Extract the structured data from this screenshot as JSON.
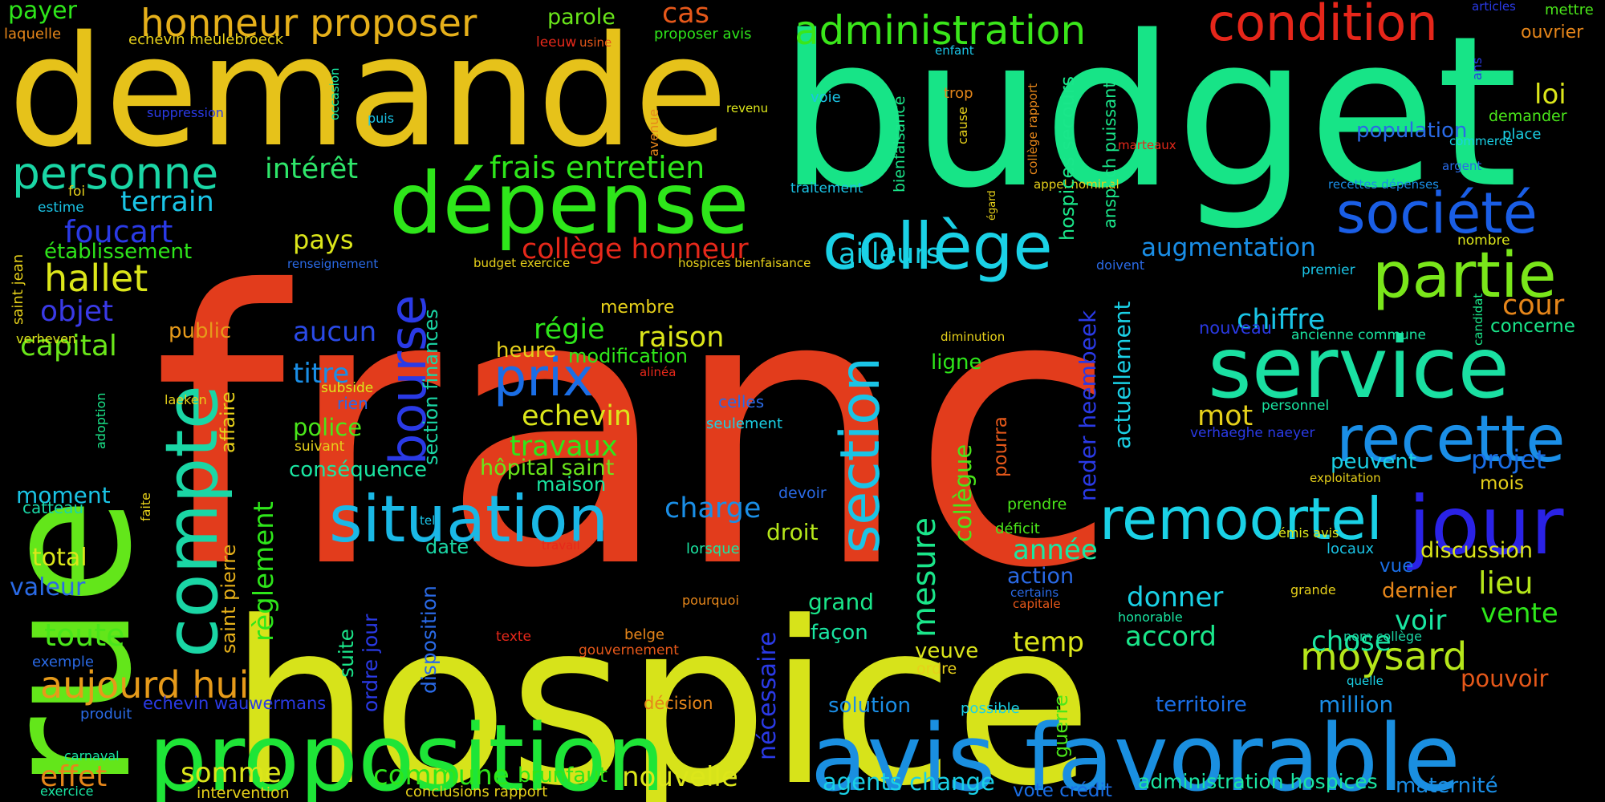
{
  "words": [
    {
      "text": "franc",
      "color": "#e23c1c"
    },
    {
      "text": "hospice",
      "color": "#d7e31a"
    },
    {
      "text": "budget",
      "color": "#17e487"
    },
    {
      "text": "demande",
      "color": "#e6c21a"
    },
    {
      "text": "rue",
      "color": "#63e61a"
    },
    {
      "text": "proposition",
      "color": "#1ee537"
    },
    {
      "text": "avis favorable",
      "color": "#1a8fe0"
    },
    {
      "text": "dépense",
      "color": "#2ee61a"
    },
    {
      "text": "service",
      "color": "#1ae0a2"
    },
    {
      "text": "situation",
      "color": "#1ab8e6"
    },
    {
      "text": "compte",
      "color": "#1ad6a5"
    },
    {
      "text": "collège",
      "color": "#1ad1e6"
    },
    {
      "text": "jour",
      "color": "#2a22e6"
    },
    {
      "text": "recette",
      "color": "#1a8ee6"
    },
    {
      "text": "remoortel",
      "color": "#1ad1e6"
    },
    {
      "text": "section",
      "color": "#1ac4e6"
    },
    {
      "text": "bourse",
      "color": "#2a3ae6"
    },
    {
      "text": "partie",
      "color": "#7ae61a"
    },
    {
      "text": "société",
      "color": "#1a5ee6"
    },
    {
      "text": "condition",
      "color": "#e6261a"
    },
    {
      "text": "administration",
      "color": "#3ae61a"
    },
    {
      "text": "honneur proposer",
      "color": "#e6b01a"
    },
    {
      "text": "personne",
      "color": "#1ad6a5"
    },
    {
      "text": "prix",
      "color": "#1a6ee6"
    },
    {
      "text": "aujourd hui",
      "color": "#e69a1a"
    },
    {
      "text": "moysard",
      "color": "#b5e61a"
    },
    {
      "text": "mesure",
      "color": "#1ae68a"
    },
    {
      "text": "frais entretien",
      "color": "#2ee61a"
    },
    {
      "text": "collège honneur",
      "color": "#e6281a"
    },
    {
      "text": "intérêt",
      "color": "#2ee66a"
    },
    {
      "text": "terrain",
      "color": "#1ac4e6"
    },
    {
      "text": "hallet",
      "color": "#dce61a"
    },
    {
      "text": "foucart",
      "color": "#2a3ae6"
    },
    {
      "text": "établissement",
      "color": "#2ee61a"
    },
    {
      "text": "objet",
      "color": "#3a3ae6"
    },
    {
      "text": "capital",
      "color": "#6ae61a"
    },
    {
      "text": "public",
      "color": "#e69a1a"
    },
    {
      "text": "aucun",
      "color": "#2a4ae6"
    },
    {
      "text": "titre",
      "color": "#1a8ee6"
    },
    {
      "text": "police",
      "color": "#4ae61a"
    },
    {
      "text": "conséquence",
      "color": "#1ae6a2"
    },
    {
      "text": "régie",
      "color": "#2ee61a"
    },
    {
      "text": "raison",
      "color": "#dce61a"
    },
    {
      "text": "heure",
      "color": "#e6d01a"
    },
    {
      "text": "modification",
      "color": "#2ee61a"
    },
    {
      "text": "echevin",
      "color": "#dce61a"
    },
    {
      "text": "travaux",
      "color": "#2ee61a"
    },
    {
      "text": "hôpital saint",
      "color": "#6ae61a"
    },
    {
      "text": "maison",
      "color": "#1ae6a2"
    },
    {
      "text": "charge",
      "color": "#1a8ee6"
    },
    {
      "text": "droit",
      "color": "#b5e61a"
    },
    {
      "text": "date",
      "color": "#1ad6a5"
    },
    {
      "text": "règlement",
      "color": "#2ee61a"
    },
    {
      "text": "saint pierre",
      "color": "#e6b01a"
    },
    {
      "text": "affaire",
      "color": "#e6d01a"
    },
    {
      "text": "section finances",
      "color": "#1ad6a5"
    },
    {
      "text": "disposition",
      "color": "#2a6ae6"
    },
    {
      "text": "suite",
      "color": "#1ae68a"
    },
    {
      "text": "ordre jour",
      "color": "#2a3ae6"
    },
    {
      "text": "commune",
      "color": "#2ee61a"
    },
    {
      "text": "nouvelle",
      "color": "#dce61a"
    },
    {
      "text": "brunfaut",
      "color": "#2ee61a"
    },
    {
      "text": "conclusions rapport",
      "color": "#e6d01a"
    },
    {
      "text": "somme",
      "color": "#dce61a"
    },
    {
      "text": "effet",
      "color": "#e6861a"
    },
    {
      "text": "intervention",
      "color": "#e6d01a"
    },
    {
      "text": "echevin wauwermans",
      "color": "#2a3ae6"
    },
    {
      "text": "toute",
      "color": "#4ae61a"
    },
    {
      "text": "total",
      "color": "#dce61a"
    },
    {
      "text": "valeur",
      "color": "#2a6ae6"
    },
    {
      "text": "moment",
      "color": "#1ac4e6"
    },
    {
      "text": "catteau",
      "color": "#1ad6a5"
    },
    {
      "text": "faite",
      "color": "#e6d01a"
    },
    {
      "text": "exemple",
      "color": "#2a6ae6"
    },
    {
      "text": "produit",
      "color": "#2a6ae6"
    },
    {
      "text": "carnaval",
      "color": "#1ae6a2"
    },
    {
      "text": "exercice",
      "color": "#1ae6a2"
    },
    {
      "text": "adoption",
      "color": "#1ae68a"
    },
    {
      "text": "verheven",
      "color": "#dce61a"
    },
    {
      "text": "laeken",
      "color": "#e6d01a"
    },
    {
      "text": "subside",
      "color": "#dce61a"
    },
    {
      "text": "rien",
      "color": "#2a6ae6"
    },
    {
      "text": "suivant",
      "color": "#e6d01a"
    },
    {
      "text": "payer",
      "color": "#2ee61a"
    },
    {
      "text": "laquelle",
      "color": "#e6861a"
    },
    {
      "text": "echevin meulebroeck",
      "color": "#e6d01a"
    },
    {
      "text": "parole",
      "color": "#6ae61a"
    },
    {
      "text": "cas",
      "color": "#e6581a"
    },
    {
      "text": "proposer avis",
      "color": "#2ee61a"
    },
    {
      "text": "leeuw",
      "color": "#e6281a"
    },
    {
      "text": "usine",
      "color": "#e6581a"
    },
    {
      "text": "occasion",
      "color": "#1ae6a2"
    },
    {
      "text": "suppression",
      "color": "#2a3ae6"
    },
    {
      "text": "puis",
      "color": "#1ac4e6"
    },
    {
      "text": "foi",
      "color": "#e6d01a"
    },
    {
      "text": "estime",
      "color": "#1ac4e6"
    },
    {
      "text": "saint jean",
      "color": "#e6d01a"
    },
    {
      "text": "pays",
      "color": "#dce61a"
    },
    {
      "text": "ailleurs",
      "color": "#1ad1e6"
    },
    {
      "text": "membre",
      "color": "#e6d01a"
    },
    {
      "text": "renseignement",
      "color": "#2a6ae6"
    },
    {
      "text": "budget exercice",
      "color": "#e6d01a"
    },
    {
      "text": "hospices bienfaisance",
      "color": "#e6d01a"
    },
    {
      "text": "avenue",
      "color": "#e6861a"
    },
    {
      "text": "revenu",
      "color": "#dce61a"
    },
    {
      "text": "voie",
      "color": "#1ac4e6"
    },
    {
      "text": "enfant",
      "color": "#1ac4e6"
    },
    {
      "text": "traitement",
      "color": "#1ac4e6"
    },
    {
      "text": "bienfaisance",
      "color": "#1ae68a"
    },
    {
      "text": "trop",
      "color": "#e6861a"
    },
    {
      "text": "cause",
      "color": "#e6d01a"
    },
    {
      "text": "collège rapport",
      "color": "#e6861a"
    },
    {
      "text": "égard",
      "color": "#e6d01a"
    },
    {
      "text": "appel nominal",
      "color": "#e6d01a"
    },
    {
      "text": "hospices secours",
      "color": "#1ae68a"
    },
    {
      "text": "anspach puissant",
      "color": "#1ae68a"
    },
    {
      "text": "marteaux",
      "color": "#e6281a"
    },
    {
      "text": "diminution",
      "color": "#e6d01a"
    },
    {
      "text": "ligne",
      "color": "#2ee61a"
    },
    {
      "text": "neder heembeek",
      "color": "#2a3ae6"
    },
    {
      "text": "actuellement",
      "color": "#1ad1e6"
    },
    {
      "text": "collègue",
      "color": "#4ae61a"
    },
    {
      "text": "pourra",
      "color": "#e6581a"
    },
    {
      "text": "celles",
      "color": "#2a6ae6"
    },
    {
      "text": "seulement",
      "color": "#1ad1e6"
    },
    {
      "text": "alinéa",
      "color": "#e6281a"
    },
    {
      "text": "devoir",
      "color": "#2a6ae6"
    },
    {
      "text": "tel",
      "color": "#1ac4e6"
    },
    {
      "text": "travail",
      "color": "#e6281a"
    },
    {
      "text": "lorsque",
      "color": "#1ae6a2"
    },
    {
      "text": "prendre",
      "color": "#4ae61a"
    },
    {
      "text": "déficit",
      "color": "#4ae61a"
    },
    {
      "text": "année",
      "color": "#1ae6a2"
    },
    {
      "text": "action",
      "color": "#2a6ae6"
    },
    {
      "text": "donner",
      "color": "#1ad1e6"
    },
    {
      "text": "temp",
      "color": "#dce61a"
    },
    {
      "text": "accord",
      "color": "#1ae68a"
    },
    {
      "text": "nécessaire",
      "color": "#2a3ae6"
    },
    {
      "text": "grand",
      "color": "#1ae68a"
    },
    {
      "text": "façon",
      "color": "#1ae6a2"
    },
    {
      "text": "veuve",
      "color": "#dce61a"
    },
    {
      "text": "ordre",
      "color": "#e6d01a"
    },
    {
      "text": "pourquoi",
      "color": "#e6861a"
    },
    {
      "text": "belge",
      "color": "#e6861a"
    },
    {
      "text": "texte",
      "color": "#e6281a"
    },
    {
      "text": "gouvernement",
      "color": "#e6581a"
    },
    {
      "text": "décision",
      "color": "#e6861a"
    },
    {
      "text": "solution",
      "color": "#1a8ee6"
    },
    {
      "text": "possible",
      "color": "#1ad1e6"
    },
    {
      "text": "guerre",
      "color": "#4ae61a"
    },
    {
      "text": "agents change",
      "color": "#1ad1e6"
    },
    {
      "text": "vote crédit",
      "color": "#1a6ee6"
    },
    {
      "text": "administration hospices",
      "color": "#1ae6a2"
    },
    {
      "text": "maternité",
      "color": "#1a8ee6"
    },
    {
      "text": "territoire",
      "color": "#1a6ee6"
    },
    {
      "text": "million",
      "color": "#1a8ee6"
    },
    {
      "text": "honorable",
      "color": "#1ae6a2"
    },
    {
      "text": "certains",
      "color": "#2a6ae6"
    },
    {
      "text": "capitale",
      "color": "#e6581a"
    },
    {
      "text": "grande",
      "color": "#e6d01a"
    },
    {
      "text": "chose",
      "color": "#1ae6a2"
    },
    {
      "text": "voir",
      "color": "#1ae6a2"
    },
    {
      "text": "nom collège",
      "color": "#1ad6a5"
    },
    {
      "text": "quelle",
      "color": "#1ad1e6"
    },
    {
      "text": "pouvoir",
      "color": "#e6581a"
    },
    {
      "text": "vente",
      "color": "#2ee61a"
    },
    {
      "text": "lieu",
      "color": "#b5e61a"
    },
    {
      "text": "dernier",
      "color": "#e6861a"
    },
    {
      "text": "vue",
      "color": "#1a6ee6"
    },
    {
      "text": "discussion",
      "color": "#dce61a"
    },
    {
      "text": "locaux",
      "color": "#1ac4e6"
    },
    {
      "text": "émis avis",
      "color": "#dce61a"
    },
    {
      "text": "exploitation",
      "color": "#e6d01a"
    },
    {
      "text": "peuvent",
      "color": "#1ad1e6"
    },
    {
      "text": "mois",
      "color": "#e6d01a"
    },
    {
      "text": "projet",
      "color": "#1a6ee6"
    },
    {
      "text": "verhaeghe naeyer",
      "color": "#2a3ae6"
    },
    {
      "text": "personnel",
      "color": "#1ae6a2"
    },
    {
      "text": "mot",
      "color": "#e6d01a"
    },
    {
      "text": "chiffre",
      "color": "#1ac4e6"
    },
    {
      "text": "nouveau",
      "color": "#2a3ae6"
    },
    {
      "text": "ancienne commune",
      "color": "#1ae6a2"
    },
    {
      "text": "concerne",
      "color": "#1ae68a"
    },
    {
      "text": "cour",
      "color": "#e6861a"
    },
    {
      "text": "candidat",
      "color": "#1ae68a"
    },
    {
      "text": "nombre",
      "color": "#dce61a"
    },
    {
      "text": "premier",
      "color": "#1ac4e6"
    },
    {
      "text": "doivent",
      "color": "#2a6ae6"
    },
    {
      "text": "augmentation",
      "color": "#1a8ee6"
    },
    {
      "text": "recettes dépenses",
      "color": "#1a8ee6"
    },
    {
      "text": "argent",
      "color": "#2a6ae6"
    },
    {
      "text": "commerce",
      "color": "#1ad1e6"
    },
    {
      "text": "place",
      "color": "#1ad1e6"
    },
    {
      "text": "demander",
      "color": "#4ae61a"
    },
    {
      "text": "loi",
      "color": "#dce61a"
    },
    {
      "text": "population",
      "color": "#2a6ae6"
    },
    {
      "text": "ans",
      "color": "#2a3ae6"
    },
    {
      "text": "articles",
      "color": "#2a3ae6"
    },
    {
      "text": "mettre",
      "color": "#4ae61a"
    },
    {
      "text": "ouvrier",
      "color": "#e6861a"
    }
  ]
}
